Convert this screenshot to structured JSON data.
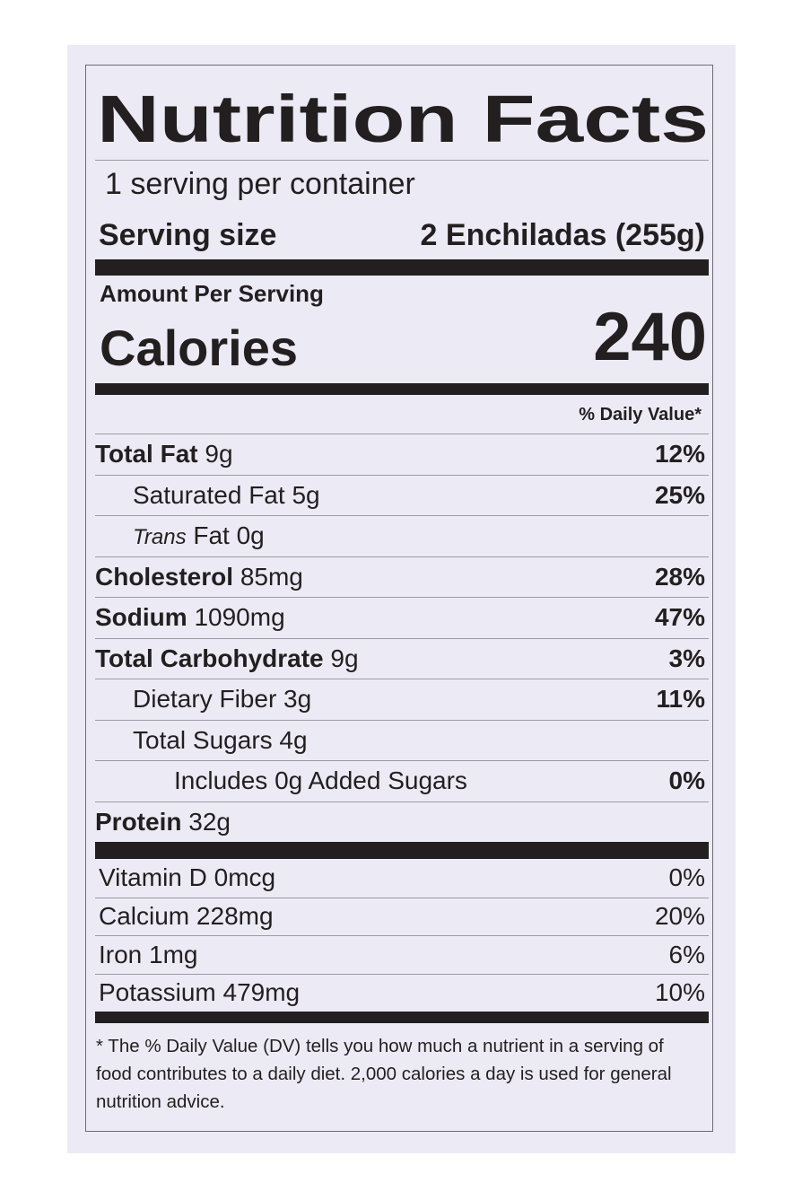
{
  "title": "Nutrition Facts",
  "servings_per_container": "1 serving per container",
  "serving_size": {
    "label": "Serving size",
    "value": "2 Enchiladas (255g)"
  },
  "amount_per_serving": "Amount Per Serving",
  "calories": {
    "label": "Calories",
    "value": "240"
  },
  "daily_value_header": "% Daily Value*",
  "nutrients": [
    {
      "name": "Total Fat",
      "amount": "9g",
      "dv": "12%",
      "level": 0
    },
    {
      "name": "Saturated Fat",
      "amount": "5g",
      "dv": "25%",
      "level": 1
    },
    {
      "name_italic": "Trans",
      "name": "Fat",
      "amount": "0g",
      "level": 1
    },
    {
      "name": "Cholesterol",
      "amount": "85mg",
      "dv": "28%",
      "level": 0
    },
    {
      "name": "Sodium",
      "amount": "1090mg",
      "dv": "47%",
      "level": 0
    },
    {
      "name": "Total Carbohydrate",
      "amount": "9g",
      "dv": "3%",
      "level": 0
    },
    {
      "name": "Dietary Fiber",
      "amount": "3g",
      "dv": "11%",
      "level": 1
    },
    {
      "name": "Total Sugars",
      "amount": "4g",
      "level": 1
    },
    {
      "name": "Includes 0g Added Sugars",
      "dv": "0%",
      "level": 2
    },
    {
      "name": "Protein",
      "amount": "32g",
      "level": 0
    }
  ],
  "vitamins": [
    {
      "name": "Vitamin D",
      "amount": "0mcg",
      "dv": "0%"
    },
    {
      "name": "Calcium",
      "amount": "228mg",
      "dv": "20%"
    },
    {
      "name": "Iron",
      "amount": "1mg",
      "dv": "6%"
    },
    {
      "name": "Potassium",
      "amount": "479mg",
      "dv": "10%"
    }
  ],
  "footnote": "* The % Daily Value (DV) tells you how much a nutrient in a serving of food contributes to a daily diet. 2,000 calories a day is used for general nutrition advice."
}
